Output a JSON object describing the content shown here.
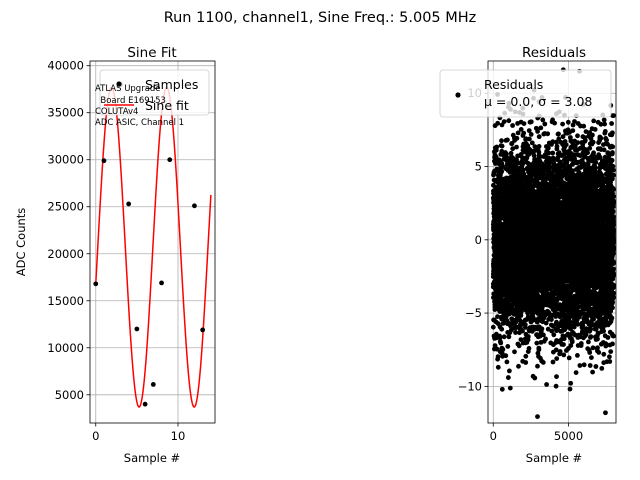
{
  "figure": {
    "suptitle": "Run 1100, channel1, Sine Freq.: 5.005 MHz"
  },
  "chart_data": [
    {
      "type": "scatter",
      "title": "Sine Fit",
      "xlabel": "Sample #",
      "ylabel": "ADC Counts",
      "xlim": [
        -0.7,
        14.5
      ],
      "ylim": [
        2000,
        40500
      ],
      "xticks": [
        0,
        10
      ],
      "yticks": [
        5000,
        10000,
        15000,
        20000,
        25000,
        30000,
        35000,
        40000
      ],
      "grid": true,
      "legend_position": "top-right",
      "series": [
        {
          "name": "Samples",
          "style": "markers",
          "color": "#000000",
          "x": [
            0,
            1,
            3,
            4,
            5,
            6,
            7,
            8,
            9,
            12,
            13
          ],
          "y": [
            16800,
            29900,
            38000,
            25300,
            12000,
            4000,
            6100,
            16900,
            30000,
            25100,
            11900
          ]
        },
        {
          "name": "Sine fit",
          "style": "line",
          "color": "#ff0000",
          "model": {
            "amplitude": 17000,
            "offset": 20700,
            "period_samples": 6.7,
            "phase_rad": -0.23,
            "x_range": [
              0,
              14
            ]
          }
        }
      ],
      "annotation": [
        "ATLAS Upgrade",
        "  Board E169153",
        "COLUTAv4",
        "ADC ASIC, Channel 1"
      ]
    },
    {
      "type": "scatter",
      "title": "Residuals",
      "xlabel": "Sample #",
      "ylabel": "",
      "xlim": [
        -350,
        8150
      ],
      "ylim": [
        -12.5,
        12.2
      ],
      "xticks": [
        0,
        5000
      ],
      "yticks": [
        -10,
        -5,
        0,
        5,
        10
      ],
      "grid": true,
      "legend_position": "top-right",
      "series": [
        {
          "name": "Residuals",
          "legend_stats": "μ = 0.0, σ = 3.08",
          "color": "#000000",
          "mean": 0.0,
          "sigma": 3.08,
          "n_points": 8000,
          "outliers": [
            {
              "x": 4650,
              "y": 11.6
            },
            {
              "x": 7450,
              "y": -11.8
            },
            {
              "x": 1000,
              "y": -9.4
            },
            {
              "x": 600,
              "y": -10.2
            }
          ]
        }
      ]
    }
  ]
}
